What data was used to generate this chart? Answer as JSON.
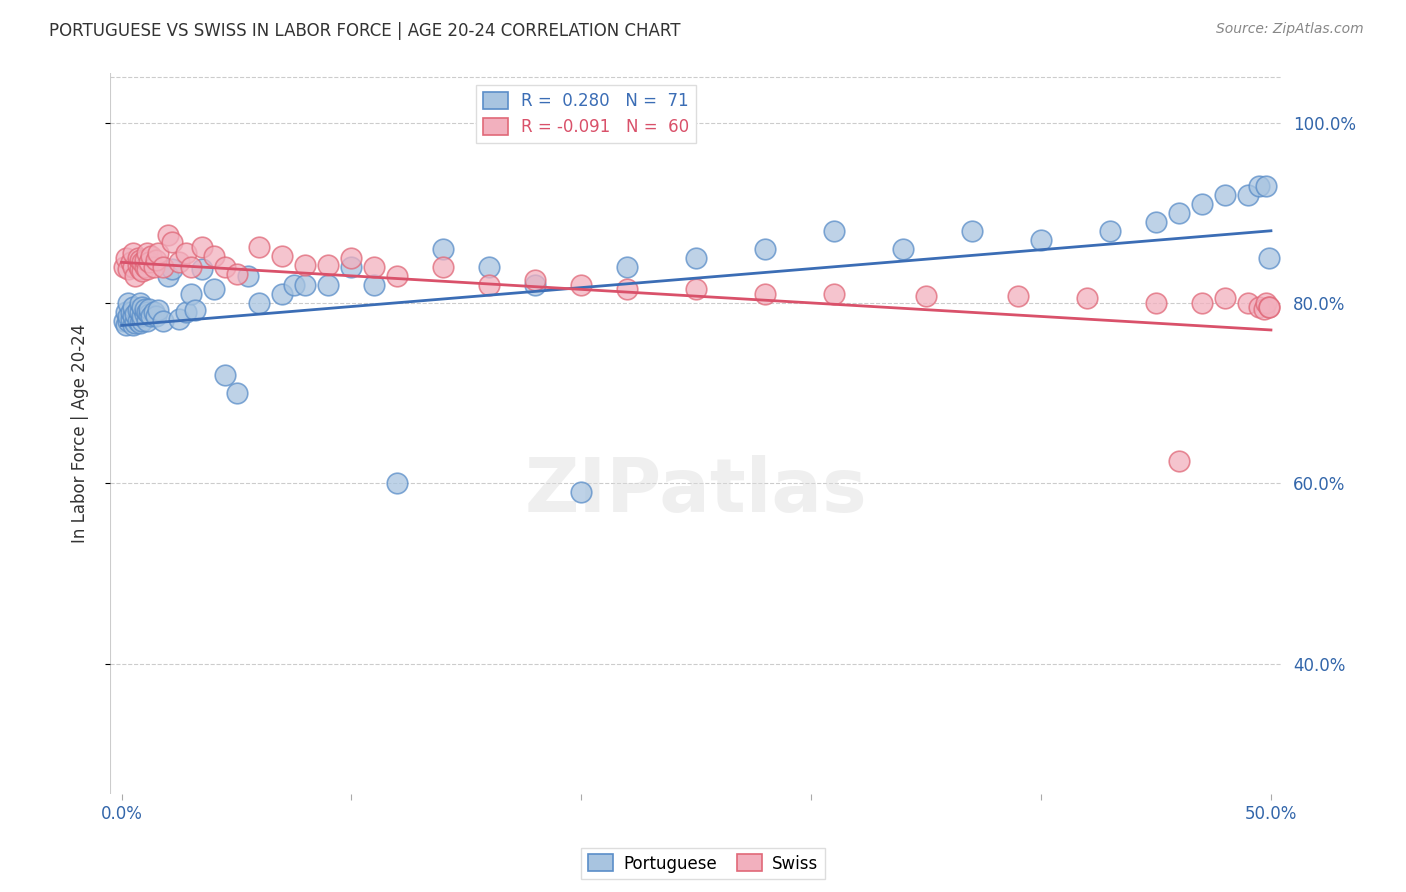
{
  "title": "PORTUGUESE VS SWISS IN LABOR FORCE | AGE 20-24 CORRELATION CHART",
  "source": "Source: ZipAtlas.com",
  "ylabel": "In Labor Force | Age 20-24",
  "blue_color": "#A8C4E0",
  "pink_color": "#F2B0BE",
  "line_blue": "#3B6DB5",
  "line_pink": "#D9516A",
  "blue_edge": "#5A8DC8",
  "pink_edge": "#E06878",
  "legend_R_blue": "R =  0.280",
  "legend_N_blue": "N =  71",
  "legend_R_pink": "R = -0.091",
  "legend_N_pink": "N =  60",
  "port_x": [
    0.001,
    0.002,
    0.002,
    0.003,
    0.003,
    0.003,
    0.004,
    0.004,
    0.005,
    0.005,
    0.005,
    0.006,
    0.006,
    0.007,
    0.007,
    0.008,
    0.008,
    0.008,
    0.009,
    0.009,
    0.009,
    0.01,
    0.01,
    0.011,
    0.011,
    0.012,
    0.012,
    0.013,
    0.014,
    0.015,
    0.016,
    0.018,
    0.02,
    0.022,
    0.025,
    0.028,
    0.03,
    0.032,
    0.035,
    0.04,
    0.045,
    0.05,
    0.055,
    0.06,
    0.07,
    0.075,
    0.08,
    0.09,
    0.1,
    0.11,
    0.12,
    0.14,
    0.16,
    0.18,
    0.2,
    0.22,
    0.25,
    0.28,
    0.31,
    0.34,
    0.37,
    0.4,
    0.43,
    0.45,
    0.46,
    0.47,
    0.48,
    0.49,
    0.495,
    0.498,
    0.499
  ],
  "port_y": [
    0.78,
    0.79,
    0.775,
    0.78,
    0.785,
    0.8,
    0.782,
    0.79,
    0.775,
    0.785,
    0.795,
    0.778,
    0.788,
    0.78,
    0.792,
    0.778,
    0.79,
    0.8,
    0.78,
    0.785,
    0.795,
    0.788,
    0.793,
    0.78,
    0.79,
    0.788,
    0.793,
    0.785,
    0.79,
    0.785,
    0.792,
    0.78,
    0.83,
    0.838,
    0.782,
    0.79,
    0.81,
    0.792,
    0.838,
    0.815,
    0.72,
    0.7,
    0.83,
    0.8,
    0.81,
    0.82,
    0.82,
    0.82,
    0.84,
    0.82,
    0.6,
    0.86,
    0.84,
    0.82,
    0.59,
    0.84,
    0.85,
    0.86,
    0.88,
    0.86,
    0.88,
    0.87,
    0.88,
    0.89,
    0.9,
    0.91,
    0.92,
    0.92,
    0.93,
    0.93,
    0.85
  ],
  "swiss_x": [
    0.001,
    0.002,
    0.003,
    0.004,
    0.005,
    0.005,
    0.006,
    0.007,
    0.007,
    0.008,
    0.008,
    0.009,
    0.009,
    0.01,
    0.01,
    0.011,
    0.011,
    0.012,
    0.013,
    0.014,
    0.015,
    0.016,
    0.018,
    0.02,
    0.022,
    0.025,
    0.028,
    0.03,
    0.035,
    0.04,
    0.045,
    0.05,
    0.06,
    0.07,
    0.08,
    0.09,
    0.1,
    0.11,
    0.12,
    0.14,
    0.16,
    0.18,
    0.2,
    0.22,
    0.25,
    0.28,
    0.31,
    0.35,
    0.39,
    0.42,
    0.45,
    0.46,
    0.47,
    0.48,
    0.49,
    0.495,
    0.497,
    0.498,
    0.499,
    0.499
  ],
  "swiss_y": [
    0.84,
    0.85,
    0.838,
    0.845,
    0.84,
    0.855,
    0.83,
    0.842,
    0.85,
    0.838,
    0.848,
    0.835,
    0.845,
    0.84,
    0.848,
    0.838,
    0.855,
    0.845,
    0.852,
    0.84,
    0.848,
    0.855,
    0.84,
    0.875,
    0.868,
    0.845,
    0.855,
    0.84,
    0.862,
    0.852,
    0.84,
    0.832,
    0.862,
    0.852,
    0.842,
    0.842,
    0.85,
    0.84,
    0.83,
    0.84,
    0.82,
    0.825,
    0.82,
    0.815,
    0.815,
    0.81,
    0.81,
    0.808,
    0.808,
    0.805,
    0.8,
    0.625,
    0.8,
    0.805,
    0.8,
    0.795,
    0.793,
    0.8,
    0.795,
    0.795
  ],
  "blue_line_x0": 0.0,
  "blue_line_y0": 0.775,
  "blue_line_x1": 0.5,
  "blue_line_y1": 0.88,
  "pink_line_x0": 0.0,
  "pink_line_y0": 0.845,
  "pink_line_x1": 0.5,
  "pink_line_y1": 0.77,
  "xlim": [
    -0.005,
    0.505
  ],
  "ylim": [
    0.255,
    1.055
  ],
  "yticks": [
    0.4,
    0.6,
    0.8,
    1.0
  ],
  "ytick_labels": [
    "40.0%",
    "60.0%",
    "80.0%",
    "100.0%"
  ],
  "xtick_labels": [
    "0.0%",
    "",
    "",
    "",
    "",
    "50.0%"
  ]
}
